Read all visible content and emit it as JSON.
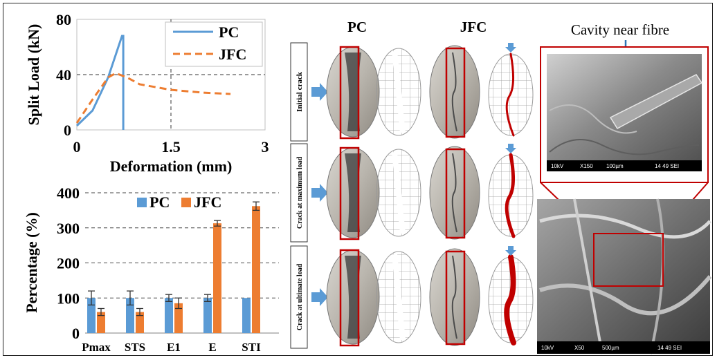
{
  "colors": {
    "pc": "#5b9bd5",
    "jfc": "#ed7d31",
    "frame": "#c00000",
    "arrow": "#5b9bd5",
    "crack": "#c00000"
  },
  "chart_data": [
    {
      "type": "line",
      "xlabel": "Deformation (mm)",
      "ylabel": "Split Load (kN)",
      "xlim": [
        0,
        3
      ],
      "ylim": [
        0,
        80
      ],
      "xticks": [
        "0",
        "1.5",
        "3"
      ],
      "yticks": [
        "0",
        "40",
        "80"
      ],
      "grid": "dashed at x=1.5 and y=40",
      "legend": "top-right",
      "series": [
        {
          "name": "PC",
          "style": "solid",
          "x": [
            0,
            0.25,
            0.5,
            0.72,
            0.74,
            0.74
          ],
          "y": [
            3,
            14,
            38,
            68,
            68,
            0
          ]
        },
        {
          "name": "JFC",
          "style": "dashed",
          "x": [
            0,
            0.25,
            0.5,
            0.62,
            0.8,
            1.0,
            1.5,
            2.0,
            2.45
          ],
          "y": [
            5,
            22,
            38,
            41,
            38,
            33,
            29,
            27,
            26
          ]
        }
      ]
    },
    {
      "type": "bar",
      "ylabel": "Percentage (%)",
      "ylim": [
        0,
        400
      ],
      "yticks": [
        "0",
        "100",
        "200",
        "300",
        "400"
      ],
      "grid": "dashed horizontal",
      "legend": "top",
      "categories": [
        "Pmax",
        "STS",
        "E1",
        "E",
        "STI"
      ],
      "series": [
        {
          "name": "PC",
          "values": [
            100,
            100,
            100,
            100,
            100
          ],
          "errors": [
            20,
            20,
            10,
            10,
            0
          ]
        },
        {
          "name": "JFC",
          "values": [
            60,
            60,
            85,
            313,
            362
          ],
          "errors": [
            10,
            10,
            15,
            8,
            12
          ]
        }
      ]
    }
  ],
  "photos": {
    "col_pc": "PC",
    "col_jfc": "JFC",
    "rows": [
      "Initial crack",
      "Crack at maximum load",
      "Crack at ultimate load"
    ]
  },
  "sem": {
    "title": "Cavity near fibre",
    "top_scalebar": [
      "10kV",
      "X150",
      "100µm",
      "14 49 SEI"
    ],
    "bottom_scalebar": [
      "10kV",
      "X50",
      "500µm",
      "14 49 SEI"
    ]
  }
}
